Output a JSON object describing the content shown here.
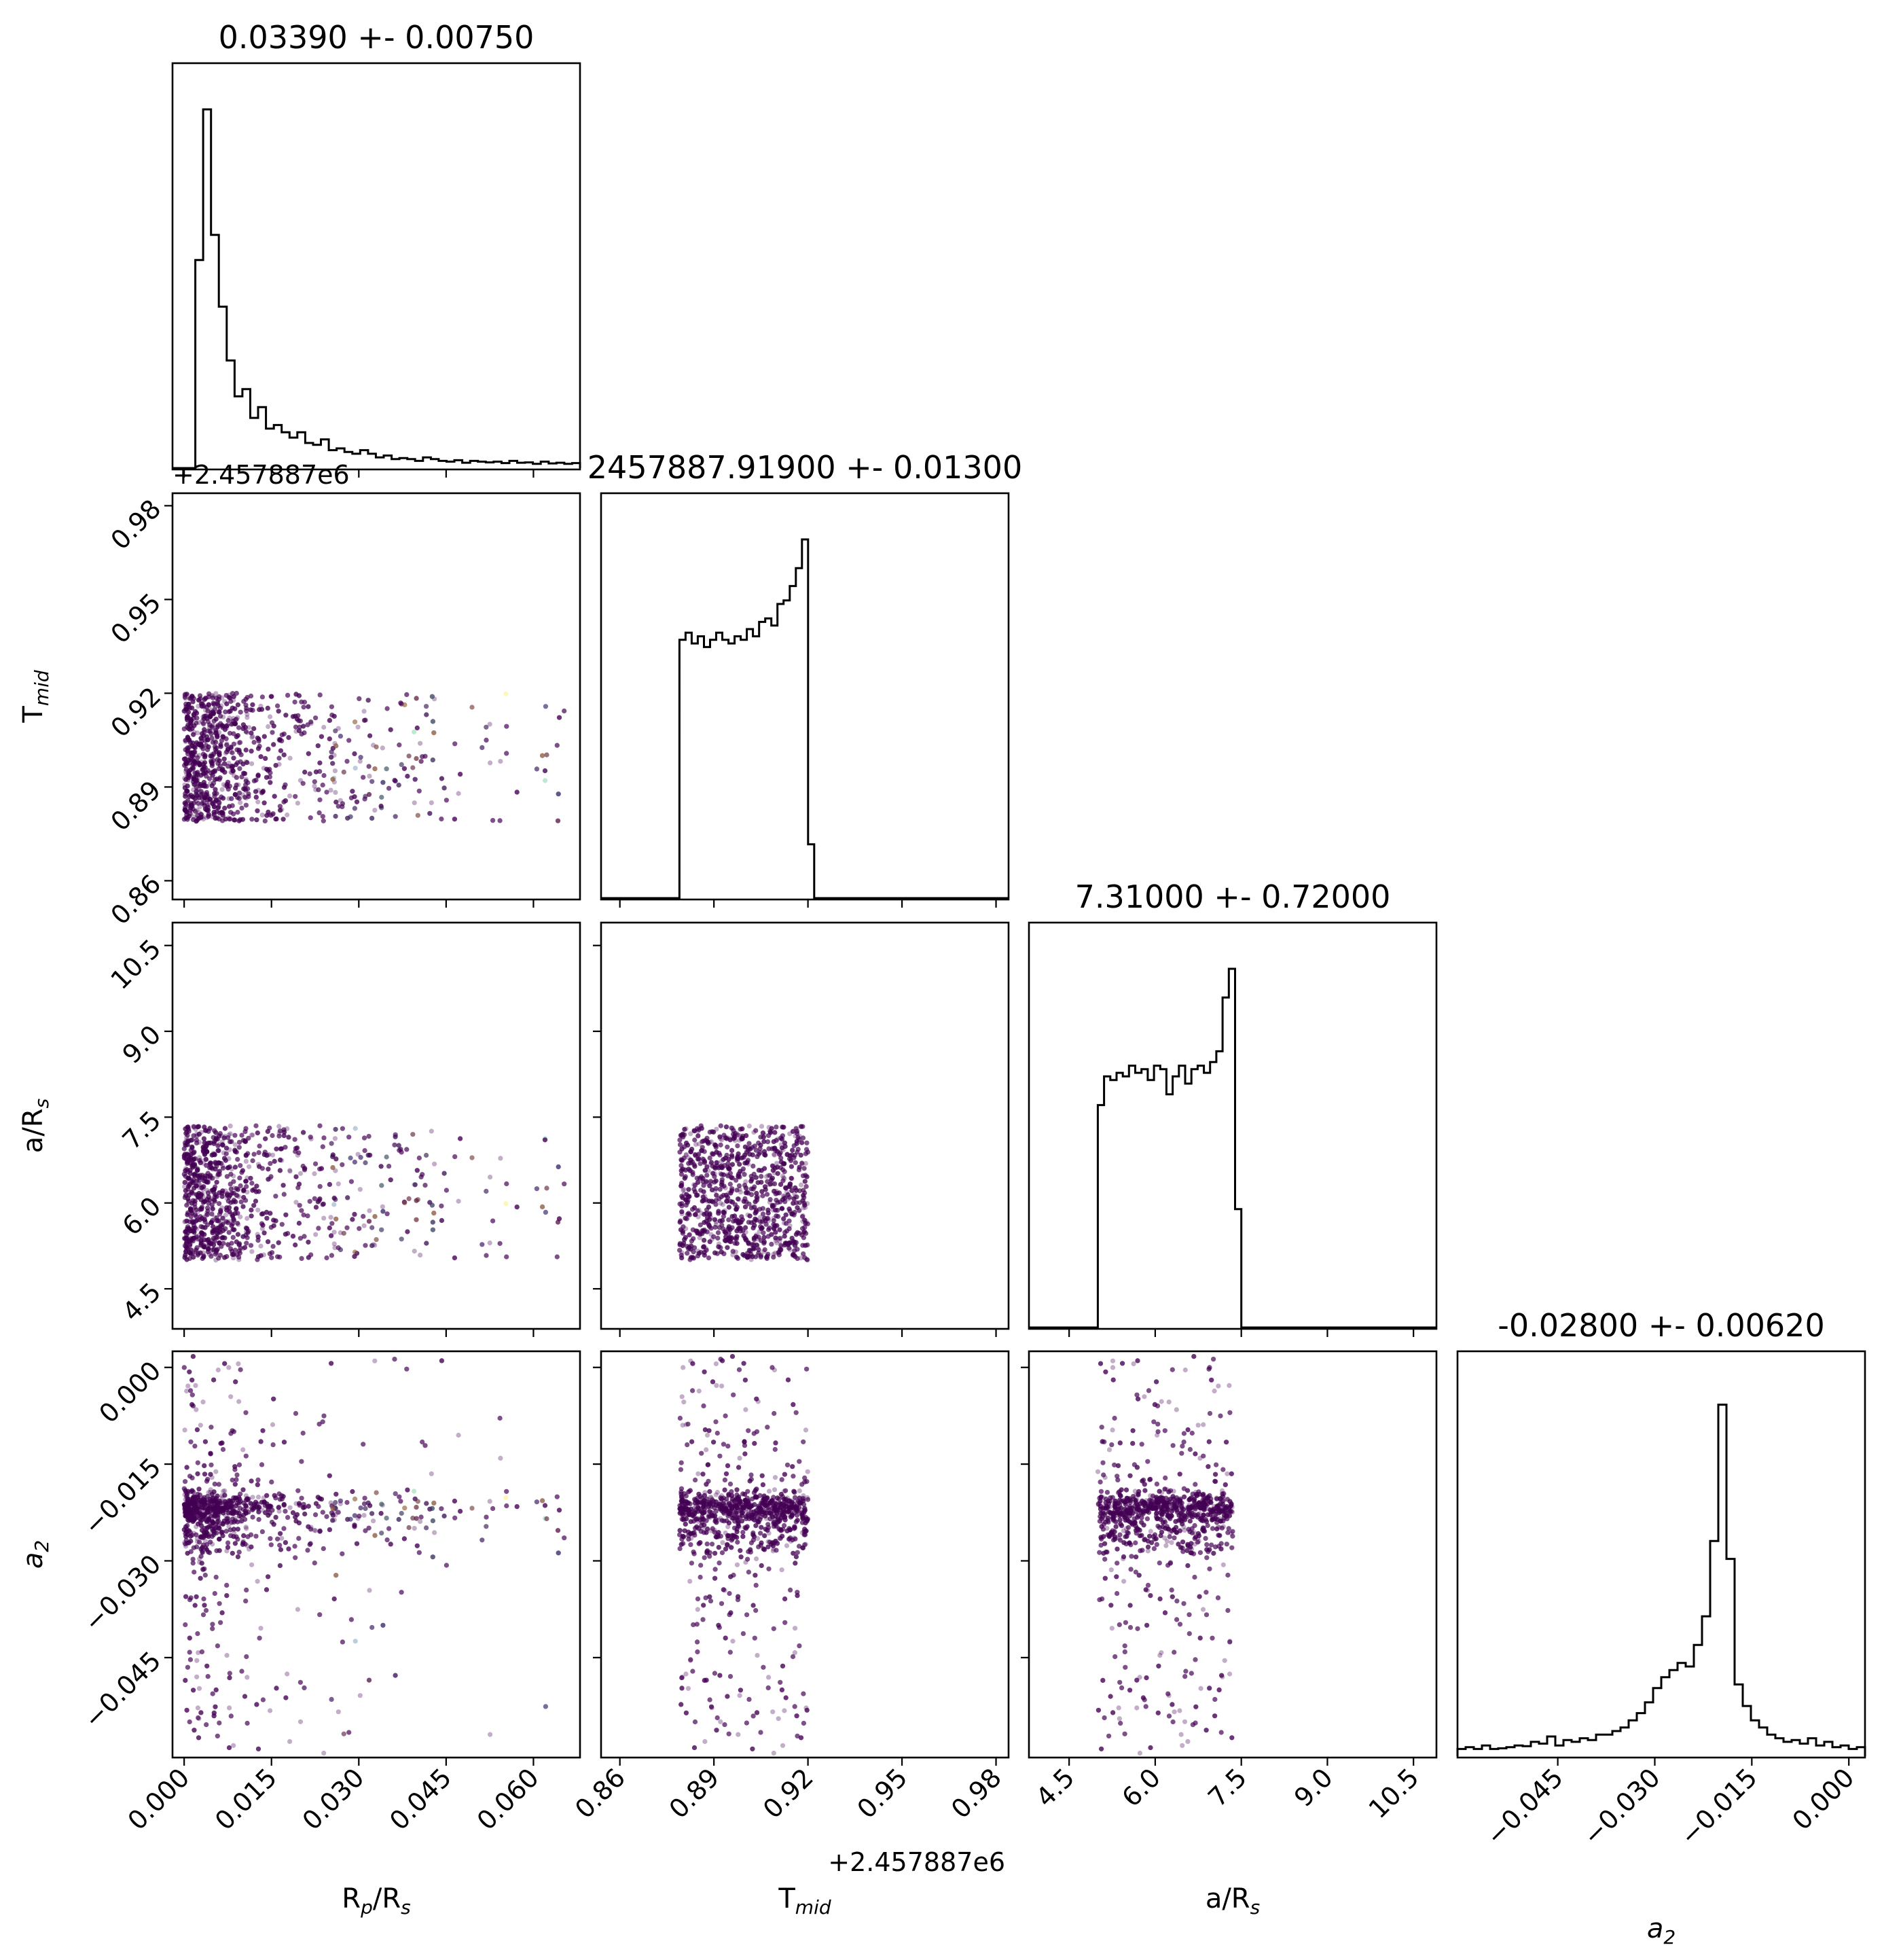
{
  "chart_data": {
    "type": "corner",
    "parameters": [
      {
        "key": "rp",
        "label_main": "R",
        "label_sub": "p",
        "label_tail": "/R",
        "label_tail_sub": "s",
        "title": "0.03390 +- 0.00750",
        "range": [
          -0.002,
          0.068
        ],
        "ticks": [
          0.0,
          0.015,
          0.03,
          0.045,
          0.06
        ],
        "tick_labels": [
          "0.000",
          "0.015",
          "0.030",
          "0.045",
          "0.060"
        ]
      },
      {
        "key": "tmid",
        "label_main": "T",
        "label_sub": "mid",
        "label_tail": "",
        "label_tail_sub": "",
        "title": "2457887.91900 +- 0.01300",
        "range": [
          0.854,
          0.984
        ],
        "ticks": [
          0.86,
          0.89,
          0.92,
          0.95,
          0.98
        ],
        "tick_labels": [
          "0.86",
          "0.89",
          "0.92",
          "0.95",
          "0.98"
        ],
        "offset": "+2.457887e6"
      },
      {
        "key": "ars",
        "label_main": "a/R",
        "label_sub": "s",
        "label_tail": "",
        "label_tail_sub": "",
        "title": "7.31000 +- 0.72000",
        "range": [
          3.8,
          10.9
        ],
        "ticks": [
          4.5,
          6.0,
          7.5,
          9.0,
          10.5
        ],
        "tick_labels": [
          "4.5",
          "6.0",
          "7.5",
          "9.0",
          "10.5"
        ]
      },
      {
        "key": "a2",
        "label_main": "a",
        "label_sub": "2",
        "label_tail": "",
        "label_tail_sub": "",
        "italic": true,
        "title": "-0.02800 +- 0.00620",
        "range": [
          -0.0605,
          0.0025
        ],
        "ticks": [
          -0.045,
          -0.03,
          -0.015,
          0.0
        ],
        "tick_labels": [
          "−0.045",
          "−0.030",
          "−0.015",
          "0.000"
        ]
      }
    ],
    "histograms": {
      "rp": [
        0.0,
        0.58,
        1.0,
        0.65,
        0.45,
        0.3,
        0.2,
        0.22,
        0.14,
        0.17,
        0.11,
        0.12,
        0.1,
        0.085,
        0.1,
        0.07,
        0.065,
        0.08,
        0.05,
        0.055,
        0.045,
        0.04,
        0.05,
        0.04,
        0.03,
        0.035,
        0.025,
        0.028,
        0.025,
        0.02,
        0.03,
        0.025,
        0.02,
        0.018,
        0.022,
        0.015,
        0.02,
        0.018,
        0.016,
        0.018,
        0.014,
        0.02,
        0.015,
        0.016,
        0.012,
        0.018,
        0.013,
        0.015,
        0.012,
        0.014
      ],
      "tmid": [
        0.72,
        0.74,
        0.71,
        0.73,
        0.7,
        0.72,
        0.74,
        0.72,
        0.71,
        0.73,
        0.72,
        0.75,
        0.73,
        0.77,
        0.78,
        0.76,
        0.82,
        0.83,
        0.87,
        0.92,
        1.0,
        0.15
      ],
      "ars": [
        0.62,
        0.7,
        0.69,
        0.71,
        0.7,
        0.73,
        0.71,
        0.72,
        0.69,
        0.73,
        0.72,
        0.65,
        0.7,
        0.73,
        0.68,
        0.72,
        0.73,
        0.71,
        0.74,
        0.77,
        0.92,
        1.0,
        0.33
      ],
      "a2": [
        0.02,
        0.025,
        0.02,
        0.03,
        0.02,
        0.022,
        0.025,
        0.03,
        0.028,
        0.04,
        0.035,
        0.055,
        0.03,
        0.045,
        0.04,
        0.05,
        0.045,
        0.06,
        0.06,
        0.07,
        0.08,
        0.1,
        0.12,
        0.15,
        0.19,
        0.22,
        0.24,
        0.26,
        0.25,
        0.31,
        0.39,
        0.6,
        0.98,
        0.55,
        0.2,
        0.14,
        0.1,
        0.08,
        0.06,
        0.05,
        0.04,
        0.045,
        0.035,
        0.05,
        0.03,
        0.04,
        0.025,
        0.03,
        0.02,
        0.025
      ]
    },
    "grid": false,
    "point_color": "#440154"
  }
}
